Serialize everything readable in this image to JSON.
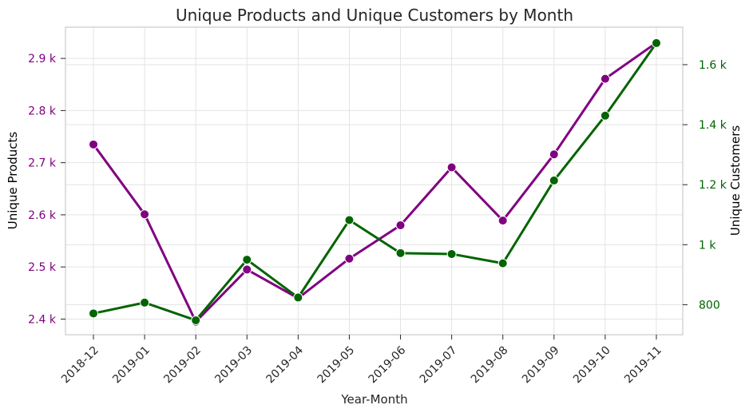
{
  "chart_data": {
    "type": "line",
    "title": "Unique Products and Unique Customers by Month",
    "xlabel": "Year-Month",
    "categories": [
      "2018-12",
      "2019-01",
      "2019-02",
      "2019-03",
      "2019-04",
      "2019-05",
      "2019-06",
      "2019-07",
      "2019-08",
      "2019-09",
      "2019-10",
      "2019-11"
    ],
    "y_left": {
      "label": "Unique Products",
      "color": "#800080",
      "ylim": [
        2370,
        2960
      ],
      "ticks": [
        2400,
        2500,
        2600,
        2700,
        2800,
        2900
      ],
      "tick_labels": [
        "2.4 k",
        "2.5 k",
        "2.6 k",
        "2.7 k",
        "2.8 k",
        "2.9 k"
      ]
    },
    "y_right": {
      "label": "Unique Customers",
      "color": "#006400",
      "ylim": [
        700,
        1725
      ],
      "ticks": [
        800,
        1000,
        1200,
        1400,
        1600
      ],
      "tick_labels": [
        "800",
        "1 k",
        "1.2 k",
        "1.4 k",
        "1.6 k"
      ]
    },
    "series": [
      {
        "name": "Unique Products",
        "axis": "left",
        "color": "#800080",
        "values": [
          2735,
          2601,
          2395,
          2495,
          2440,
          2516,
          2580,
          2691,
          2589,
          2716,
          2861,
          2930
        ]
      },
      {
        "name": "Unique Customers",
        "axis": "right",
        "color": "#006400",
        "values": [
          771,
          807,
          748,
          950,
          824,
          1082,
          972,
          969,
          938,
          1214,
          1430,
          1672
        ]
      }
    ],
    "grid": true,
    "legend": "none"
  }
}
